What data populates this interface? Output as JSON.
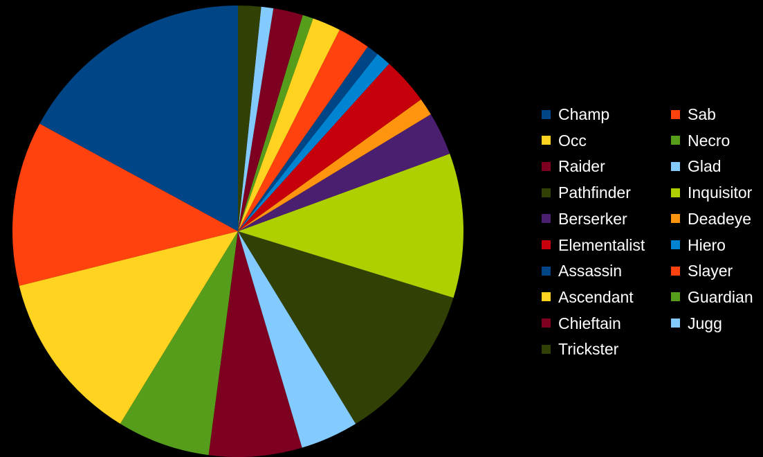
{
  "chart_data": {
    "type": "pie",
    "title": "",
    "slices": [
      {
        "label": "Champ",
        "value": 17.7,
        "color": "#004586"
      },
      {
        "label": "Sab",
        "value": 12.2,
        "color": "#ff420e"
      },
      {
        "label": "Occ",
        "value": 12.8,
        "color": "#ffd320"
      },
      {
        "label": "Necro",
        "value": 6.9,
        "color": "#579d1c"
      },
      {
        "label": "Raider",
        "value": 6.9,
        "color": "#7e0021"
      },
      {
        "label": "Glad",
        "value": 4.3,
        "color": "#83caff"
      },
      {
        "label": "Pathfinder",
        "value": 11.9,
        "color": "#314004"
      },
      {
        "label": "Inquisitor",
        "value": 10.7,
        "color": "#aecf00"
      },
      {
        "label": "Berserker",
        "value": 3.2,
        "color": "#4b1f6f"
      },
      {
        "label": "Deadeye",
        "value": 1.3,
        "color": "#ff950e"
      },
      {
        "label": "Elementalist",
        "value": 3.5,
        "color": "#c5000b"
      },
      {
        "label": "Hiero",
        "value": 1.1,
        "color": "#0084d1"
      },
      {
        "label": "Assassin",
        "value": 0.9,
        "color": "#004586"
      },
      {
        "label": "Slayer",
        "value": 2.4,
        "color": "#ff420e"
      },
      {
        "label": "Ascendant",
        "value": 2.1,
        "color": "#ffd320"
      },
      {
        "label": "Guardian",
        "value": 0.8,
        "color": "#579d1c"
      },
      {
        "label": "Chieftain",
        "value": 2.2,
        "color": "#7e0021"
      },
      {
        "label": "Jugg",
        "value": 0.9,
        "color": "#83caff"
      },
      {
        "label": "Trickster",
        "value": 1.7,
        "color": "#314004"
      }
    ],
    "legend_position": "right",
    "start_angle": "top, counterclockwise"
  }
}
